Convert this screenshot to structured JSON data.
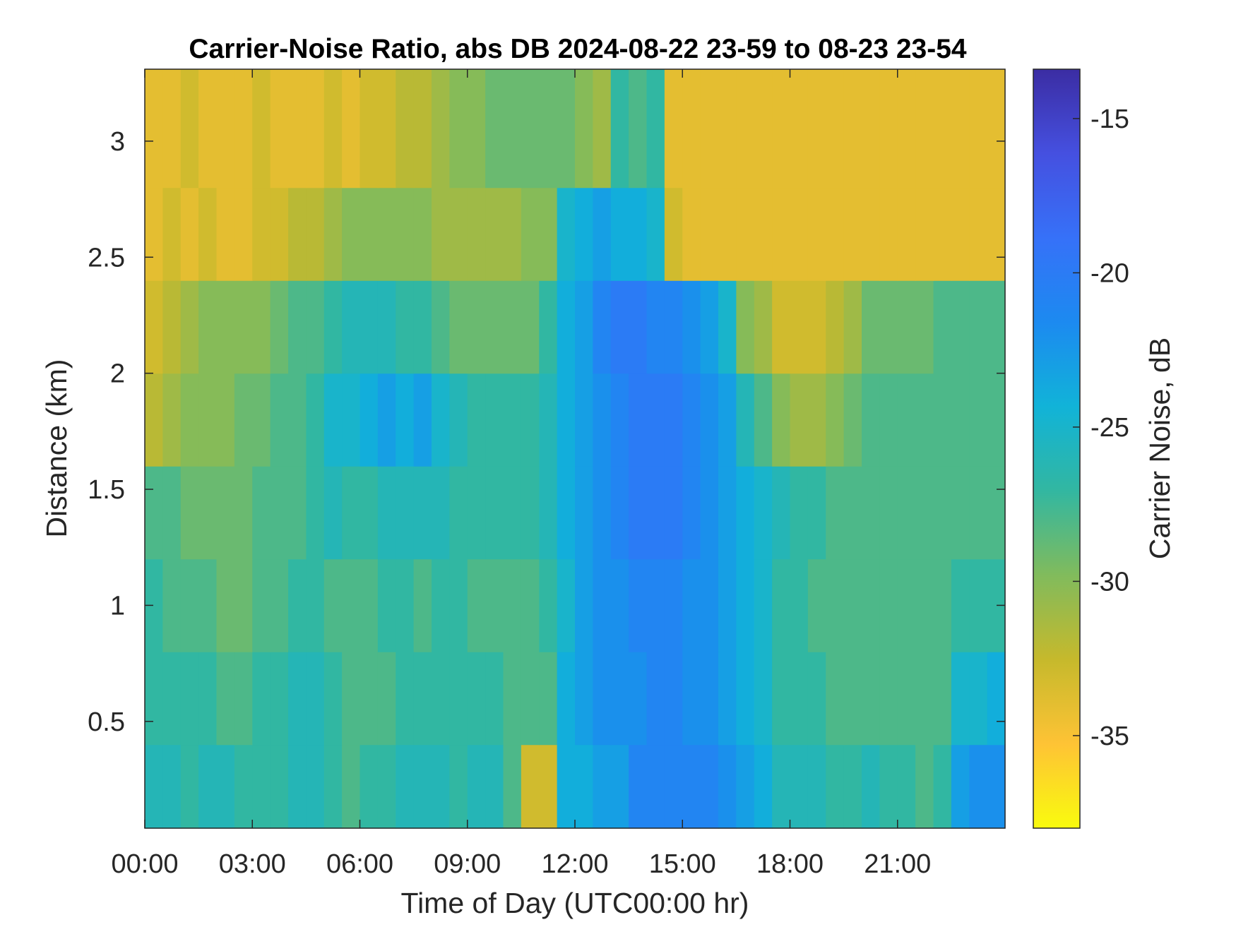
{
  "chart_data": {
    "type": "heatmap",
    "title": "Carrier-Noise Ratio, abs DB 2024-08-22 23-59 to 08-23 23-54",
    "xlabel": "Time of Day (UTC00:00 hr)",
    "ylabel": "Distance (km)",
    "colorbar_label": "Carrier Noise, dB",
    "xlim": [
      0,
      24
    ],
    "ylim": [
      0.04,
      3.31
    ],
    "clim": [
      -38,
      -13.4
    ],
    "x_ticks": [
      {
        "value": 0,
        "label": "00:00"
      },
      {
        "value": 3,
        "label": "03:00"
      },
      {
        "value": 6,
        "label": "06:00"
      },
      {
        "value": 9,
        "label": "09:00"
      },
      {
        "value": 12,
        "label": "12:00"
      },
      {
        "value": 15,
        "label": "15:00"
      },
      {
        "value": 18,
        "label": "18:00"
      },
      {
        "value": 21,
        "label": "21:00"
      }
    ],
    "y_ticks": [
      {
        "value": 0.5,
        "label": "0.5"
      },
      {
        "value": 1,
        "label": "1"
      },
      {
        "value": 1.5,
        "label": "1.5"
      },
      {
        "value": 2,
        "label": "2"
      },
      {
        "value": 2.5,
        "label": "2.5"
      },
      {
        "value": 3,
        "label": "3"
      }
    ],
    "colorbar_ticks": [
      {
        "value": -15,
        "label": "-15"
      },
      {
        "value": -20,
        "label": "-20"
      },
      {
        "value": -25,
        "label": "-25"
      },
      {
        "value": -30,
        "label": "-30"
      },
      {
        "value": -35,
        "label": "-35"
      }
    ],
    "colormap": "parula (reversed: yellow = low, dark blue = high)",
    "colormap_stops": [
      "#F9FB0E",
      "#FEC335",
      "#C6B92C",
      "#81BB5C",
      "#32B7A1",
      "#11B3D8",
      "#1C8AF0",
      "#3671F8",
      "#4550E0",
      "#3B2DA3"
    ],
    "grid": false,
    "grid_x_hours": [
      0,
      0.5,
      1,
      1.5,
      2,
      2.5,
      3,
      3.5,
      4,
      4.5,
      5,
      5.5,
      6,
      6.5,
      7,
      7.5,
      8,
      8.5,
      9,
      9.5,
      10,
      10.5,
      11,
      11.5,
      12,
      12.5,
      13,
      13.5,
      14,
      14.5,
      15,
      15.5,
      16,
      16.5,
      17,
      17.5,
      18,
      18.5,
      19,
      19.5,
      20,
      20.5,
      21,
      21.5,
      22,
      22.5,
      23,
      23.5
    ],
    "grid_y_km": [
      0.2,
      0.6,
      1.0,
      1.4,
      1.8,
      2.2,
      2.6,
      3.0
    ],
    "values_db": [
      [
        -26,
        -26,
        -27,
        -26,
        -26,
        -27,
        -27,
        -27,
        -26,
        -26,
        -27,
        -28,
        -27,
        -27,
        -26,
        -26,
        -26,
        -27,
        -26,
        -26,
        -28,
        -33,
        -33,
        -24,
        -24,
        -23,
        -23,
        -21,
        -21,
        -21,
        -21,
        -21,
        -22,
        -23,
        -24,
        -26,
        -26,
        -26,
        -27,
        -27,
        -26,
        -27,
        -27,
        -28,
        -27,
        -23,
        -22,
        -22
      ],
      [
        -27,
        -27,
        -27,
        -27,
        -28,
        -28,
        -27,
        -27,
        -26,
        -26,
        -27,
        -28,
        -28,
        -28,
        -27,
        -27,
        -27,
        -27,
        -27,
        -27,
        -28,
        -28,
        -28,
        -24,
        -23,
        -22,
        -22,
        -22,
        -21,
        -21,
        -22,
        -22,
        -23,
        -24,
        -25,
        -27,
        -27,
        -27,
        -28,
        -28,
        -28,
        -28,
        -28,
        -28,
        -28,
        -25,
        -25,
        -24
      ],
      [
        -27,
        -28,
        -28,
        -28,
        -29,
        -29,
        -28,
        -28,
        -27,
        -27,
        -28,
        -28,
        -28,
        -27,
        -27,
        -28,
        -27,
        -27,
        -28,
        -28,
        -28,
        -28,
        -27,
        -25,
        -23,
        -22,
        -22,
        -21,
        -21,
        -21,
        -22,
        -22,
        -23,
        -24,
        -25,
        -27,
        -27,
        -28,
        -28,
        -28,
        -28,
        -28,
        -28,
        -28,
        -28,
        -27,
        -27,
        -27
      ],
      [
        -28,
        -28,
        -29,
        -29,
        -29,
        -29,
        -28,
        -28,
        -28,
        -27,
        -26,
        -27,
        -27,
        -26,
        -26,
        -26,
        -26,
        -27,
        -27,
        -27,
        -27,
        -27,
        -26,
        -24,
        -23,
        -22,
        -21,
        -20,
        -20,
        -20,
        -21,
        -22,
        -23,
        -24,
        -25,
        -26,
        -27,
        -27,
        -28,
        -28,
        -28,
        -28,
        -28,
        -28,
        -28,
        -28,
        -28,
        -28
      ],
      [
        -32,
        -31,
        -30,
        -30,
        -30,
        -29,
        -29,
        -28,
        -28,
        -27,
        -25,
        -25,
        -24,
        -23,
        -24,
        -23,
        -25,
        -26,
        -27,
        -27,
        -27,
        -27,
        -26,
        -24,
        -23,
        -22,
        -21,
        -20,
        -20,
        -20,
        -21,
        -22,
        -23,
        -26,
        -28,
        -30,
        -31,
        -31,
        -30,
        -29,
        -28,
        -28,
        -28,
        -28,
        -28,
        -28,
        -28,
        -28
      ],
      [
        -33,
        -32,
        -31,
        -30,
        -30,
        -30,
        -30,
        -29,
        -28,
        -28,
        -27,
        -26,
        -26,
        -26,
        -27,
        -27,
        -28,
        -29,
        -29,
        -29,
        -29,
        -29,
        -27,
        -24,
        -23,
        -21,
        -20,
        -20,
        -21,
        -21,
        -22,
        -23,
        -25,
        -30,
        -31,
        -33,
        -33,
        -33,
        -32,
        -31,
        -29,
        -29,
        -29,
        -29,
        -28,
        -28,
        -28,
        -28
      ],
      [
        -34,
        -33,
        -34,
        -33,
        -34,
        -34,
        -33,
        -33,
        -32,
        -32,
        -31,
        -30,
        -30,
        -30,
        -30,
        -30,
        -31,
        -31,
        -31,
        -31,
        -31,
        -30,
        -30,
        -25,
        -24,
        -23,
        -24,
        -24,
        -25,
        -33,
        -34,
        -34,
        -34,
        -34,
        -34,
        -34,
        -34,
        -34,
        -34,
        -34,
        -34,
        -34,
        -34,
        -34,
        -34,
        -34,
        -34,
        -34
      ],
      [
        -34,
        -34,
        -33,
        -34,
        -34,
        -34,
        -33,
        -34,
        -34,
        -34,
        -33,
        -34,
        -33,
        -33,
        -32,
        -32,
        -31,
        -30,
        -30,
        -29,
        -29,
        -29,
        -29,
        -29,
        -30,
        -31,
        -27,
        -28,
        -27,
        -34,
        -34,
        -34,
        -34,
        -34,
        -34,
        -34,
        -34,
        -34,
        -34,
        -34,
        -34,
        -34,
        -34,
        -34,
        -34,
        -34,
        -34,
        -34
      ]
    ],
    "annotations": []
  }
}
